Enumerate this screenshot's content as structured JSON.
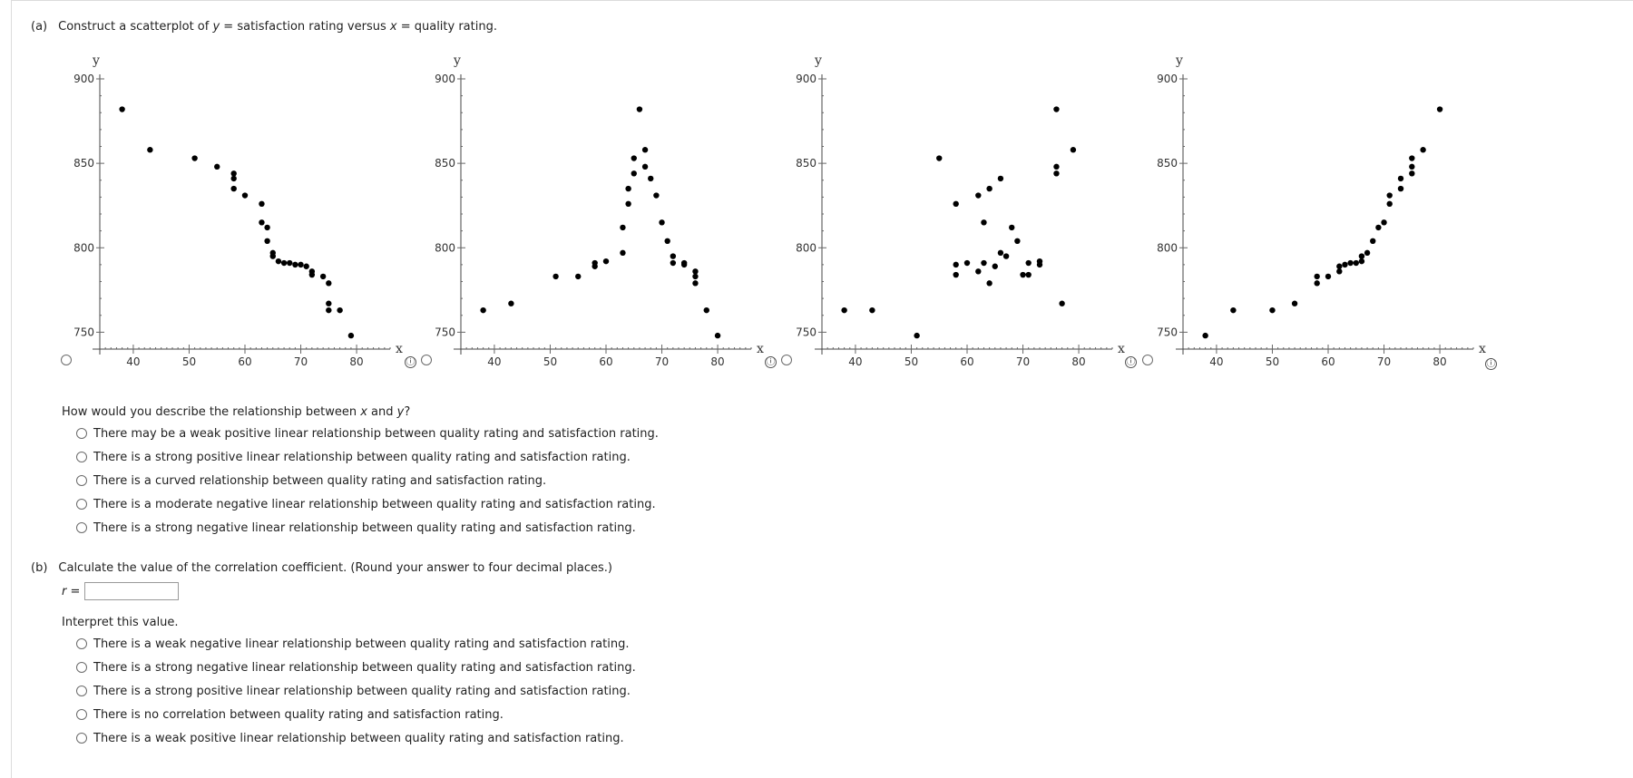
{
  "part_a": {
    "label": "(a)",
    "prompt_pre": "Construct a scatterplot of ",
    "y_var": "y",
    "prompt_mid": " = satisfaction rating versus ",
    "x_var": "x",
    "prompt_post": " = quality rating."
  },
  "chart_data": [
    {
      "type": "scatter",
      "xlabel": "x",
      "ylabel": "y",
      "xlim": [
        34,
        86
      ],
      "ylim": [
        740,
        900
      ],
      "xticks": [
        "40",
        "50",
        "60",
        "70",
        "80"
      ],
      "yticks": [
        "750",
        "800",
        "850",
        "900"
      ],
      "points": [
        [
          38,
          882
        ],
        [
          43,
          858
        ],
        [
          51,
          853
        ],
        [
          55,
          848
        ],
        [
          58,
          844
        ],
        [
          58,
          841
        ],
        [
          58,
          835
        ],
        [
          60,
          831
        ],
        [
          63,
          826
        ],
        [
          63,
          815
        ],
        [
          64,
          812
        ],
        [
          64,
          804
        ],
        [
          65,
          797
        ],
        [
          65,
          795
        ],
        [
          66,
          792
        ],
        [
          67,
          791
        ],
        [
          68,
          791
        ],
        [
          69,
          790
        ],
        [
          70,
          790
        ],
        [
          71,
          789
        ],
        [
          72,
          786
        ],
        [
          72,
          784
        ],
        [
          74,
          783
        ],
        [
          75,
          779
        ],
        [
          75,
          767
        ],
        [
          75,
          763
        ],
        [
          77,
          763
        ],
        [
          79,
          748
        ]
      ]
    },
    {
      "type": "scatter",
      "xlabel": "x",
      "ylabel": "y",
      "xlim": [
        34,
        86
      ],
      "ylim": [
        740,
        900
      ],
      "xticks": [
        "40",
        "50",
        "60",
        "70",
        "80"
      ],
      "yticks": [
        "750",
        "800",
        "850",
        "900"
      ],
      "points": [
        [
          38,
          763
        ],
        [
          43,
          767
        ],
        [
          51,
          783
        ],
        [
          55,
          783
        ],
        [
          58,
          791
        ],
        [
          58,
          789
        ],
        [
          60,
          792
        ],
        [
          63,
          797
        ],
        [
          63,
          812
        ],
        [
          64,
          826
        ],
        [
          64,
          835
        ],
        [
          65,
          844
        ],
        [
          65,
          853
        ],
        [
          66,
          882
        ],
        [
          67,
          858
        ],
        [
          67,
          848
        ],
        [
          68,
          841
        ],
        [
          69,
          831
        ],
        [
          70,
          815
        ],
        [
          71,
          804
        ],
        [
          72,
          795
        ],
        [
          72,
          791
        ],
        [
          74,
          791
        ],
        [
          74,
          790
        ],
        [
          76,
          786
        ],
        [
          76,
          783
        ],
        [
          76,
          779
        ],
        [
          78,
          763
        ],
        [
          80,
          748
        ]
      ]
    },
    {
      "type": "scatter",
      "xlabel": "x",
      "ylabel": "y",
      "xlim": [
        34,
        86
      ],
      "ylim": [
        740,
        900
      ],
      "xticks": [
        "40",
        "50",
        "60",
        "70",
        "80"
      ],
      "yticks": [
        "750",
        "800",
        "850",
        "900"
      ],
      "points": [
        [
          38,
          763
        ],
        [
          43,
          763
        ],
        [
          51,
          748
        ],
        [
          55,
          853
        ],
        [
          58,
          826
        ],
        [
          58,
          790
        ],
        [
          58,
          784
        ],
        [
          60,
          791
        ],
        [
          62,
          831
        ],
        [
          62,
          786
        ],
        [
          63,
          815
        ],
        [
          63,
          791
        ],
        [
          64,
          835
        ],
        [
          64,
          779
        ],
        [
          65,
          789
        ],
        [
          66,
          841
        ],
        [
          66,
          797
        ],
        [
          67,
          795
        ],
        [
          68,
          812
        ],
        [
          69,
          804
        ],
        [
          70,
          784
        ],
        [
          71,
          784
        ],
        [
          71,
          791
        ],
        [
          73,
          792
        ],
        [
          73,
          790
        ],
        [
          76,
          882
        ],
        [
          76,
          848
        ],
        [
          76,
          844
        ],
        [
          77,
          767
        ],
        [
          79,
          858
        ]
      ]
    },
    {
      "type": "scatter",
      "xlabel": "x",
      "ylabel": "y",
      "xlim": [
        34,
        86
      ],
      "ylim": [
        740,
        900
      ],
      "xticks": [
        "40",
        "50",
        "60",
        "70",
        "80"
      ],
      "yticks": [
        "750",
        "800",
        "850",
        "900"
      ],
      "points": [
        [
          38,
          748
        ],
        [
          43,
          763
        ],
        [
          50,
          763
        ],
        [
          54,
          767
        ],
        [
          58,
          783
        ],
        [
          58,
          779
        ],
        [
          60,
          783
        ],
        [
          62,
          786
        ],
        [
          62,
          789
        ],
        [
          63,
          790
        ],
        [
          64,
          791
        ],
        [
          65,
          791
        ],
        [
          66,
          792
        ],
        [
          66,
          795
        ],
        [
          67,
          797
        ],
        [
          68,
          804
        ],
        [
          69,
          812
        ],
        [
          70,
          815
        ],
        [
          71,
          826
        ],
        [
          71,
          831
        ],
        [
          73,
          835
        ],
        [
          73,
          841
        ],
        [
          75,
          844
        ],
        [
          75,
          848
        ],
        [
          75,
          853
        ],
        [
          77,
          858
        ],
        [
          80,
          882
        ]
      ]
    }
  ],
  "q1": {
    "prompt_pre": "How would you describe the relationship between ",
    "x_var": "x",
    "prompt_mid": " and ",
    "y_var": "y",
    "prompt_post": "?",
    "options": [
      "There may be a weak positive linear relationship between quality rating and satisfaction rating.",
      "There is a strong positive linear relationship between quality rating and satisfaction rating.",
      "There is a curved relationship between quality rating and satisfaction rating.",
      "There is a moderate negative linear relationship between quality rating and satisfaction rating.",
      "There is a strong negative linear relationship between quality rating and satisfaction rating."
    ]
  },
  "part_b": {
    "label": "(b)",
    "prompt": "Calculate the value of the correlation coefficient. (Round your answer to four decimal places.)",
    "r_label": "r =",
    "r_value": "",
    "interpret_prompt": "Interpret this value.",
    "options": [
      "There is a weak negative linear relationship between quality rating and satisfaction rating.",
      "There is a strong negative linear relationship between quality rating and satisfaction rating.",
      "There is a strong positive linear relationship between quality rating and satisfaction rating.",
      "There is no correlation between quality rating and satisfaction rating.",
      "There is a weak positive linear relationship between quality rating and satisfaction rating."
    ]
  },
  "icons": {
    "info": "ⓘ"
  }
}
